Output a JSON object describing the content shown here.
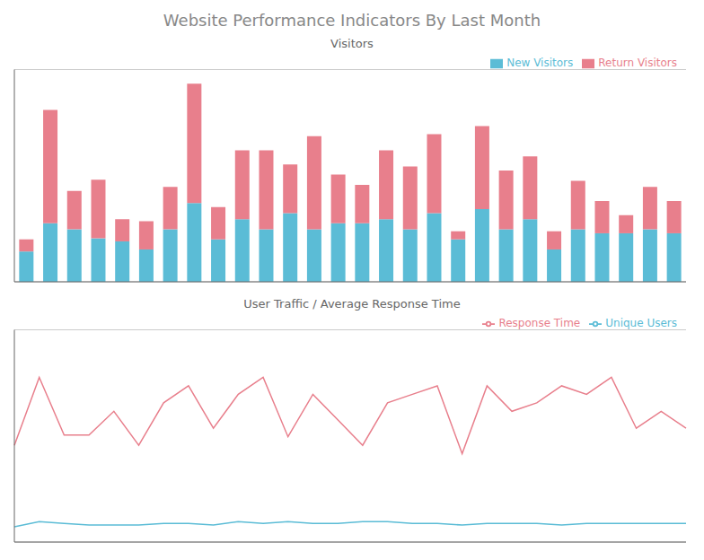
{
  "title": "Website Performance Indicators By Last Month",
  "chart_data": [
    {
      "type": "bar",
      "title": "Visitors",
      "stacked": true,
      "series": [
        {
          "name": "New Visitors",
          "color": "#5bbcd6",
          "values": [
            30,
            58,
            52,
            43,
            40,
            32,
            52,
            78,
            42,
            62,
            52,
            68,
            52,
            58,
            58,
            62,
            52,
            68,
            42,
            72,
            52,
            62,
            32,
            52,
            48,
            48,
            52,
            48
          ]
        },
        {
          "name": "Return Visitors",
          "color": "#e87f8c",
          "values": [
            12,
            112,
            38,
            58,
            22,
            28,
            42,
            118,
            32,
            68,
            78,
            48,
            92,
            48,
            38,
            68,
            62,
            78,
            8,
            82,
            58,
            62,
            18,
            48,
            32,
            18,
            42,
            32
          ]
        }
      ],
      "ylim": [
        0,
        210
      ],
      "yticks": [
        0,
        30,
        60,
        90,
        120,
        150,
        180,
        210
      ],
      "grid": true,
      "legend": "upper right",
      "tick_labels": false
    },
    {
      "type": "line",
      "title": "User Traffic / Average Response Time",
      "series": [
        {
          "name": "Unique Users",
          "color": "#5bbcd6",
          "values": [
            4,
            7,
            6,
            5,
            5,
            5,
            6,
            6,
            5,
            7,
            6,
            7,
            6,
            6,
            7,
            7,
            6,
            6,
            5,
            6,
            6,
            6,
            5,
            6,
            6,
            6,
            6,
            6
          ]
        },
        {
          "name": "Response Time",
          "color": "#e87f8c",
          "values": [
            52,
            92,
            58,
            58,
            72,
            52,
            77,
            87,
            62,
            82,
            92,
            57,
            82,
            67,
            52,
            77,
            82,
            87,
            47,
            87,
            72,
            77,
            87,
            82,
            92,
            62,
            72,
            62
          ]
        }
      ],
      "ylim": [
        -5,
        120
      ],
      "yticks": [
        0,
        15,
        30,
        45,
        60,
        75,
        90,
        105,
        120
      ],
      "grid": true,
      "legend": "upper right",
      "tick_labels": false
    }
  ]
}
